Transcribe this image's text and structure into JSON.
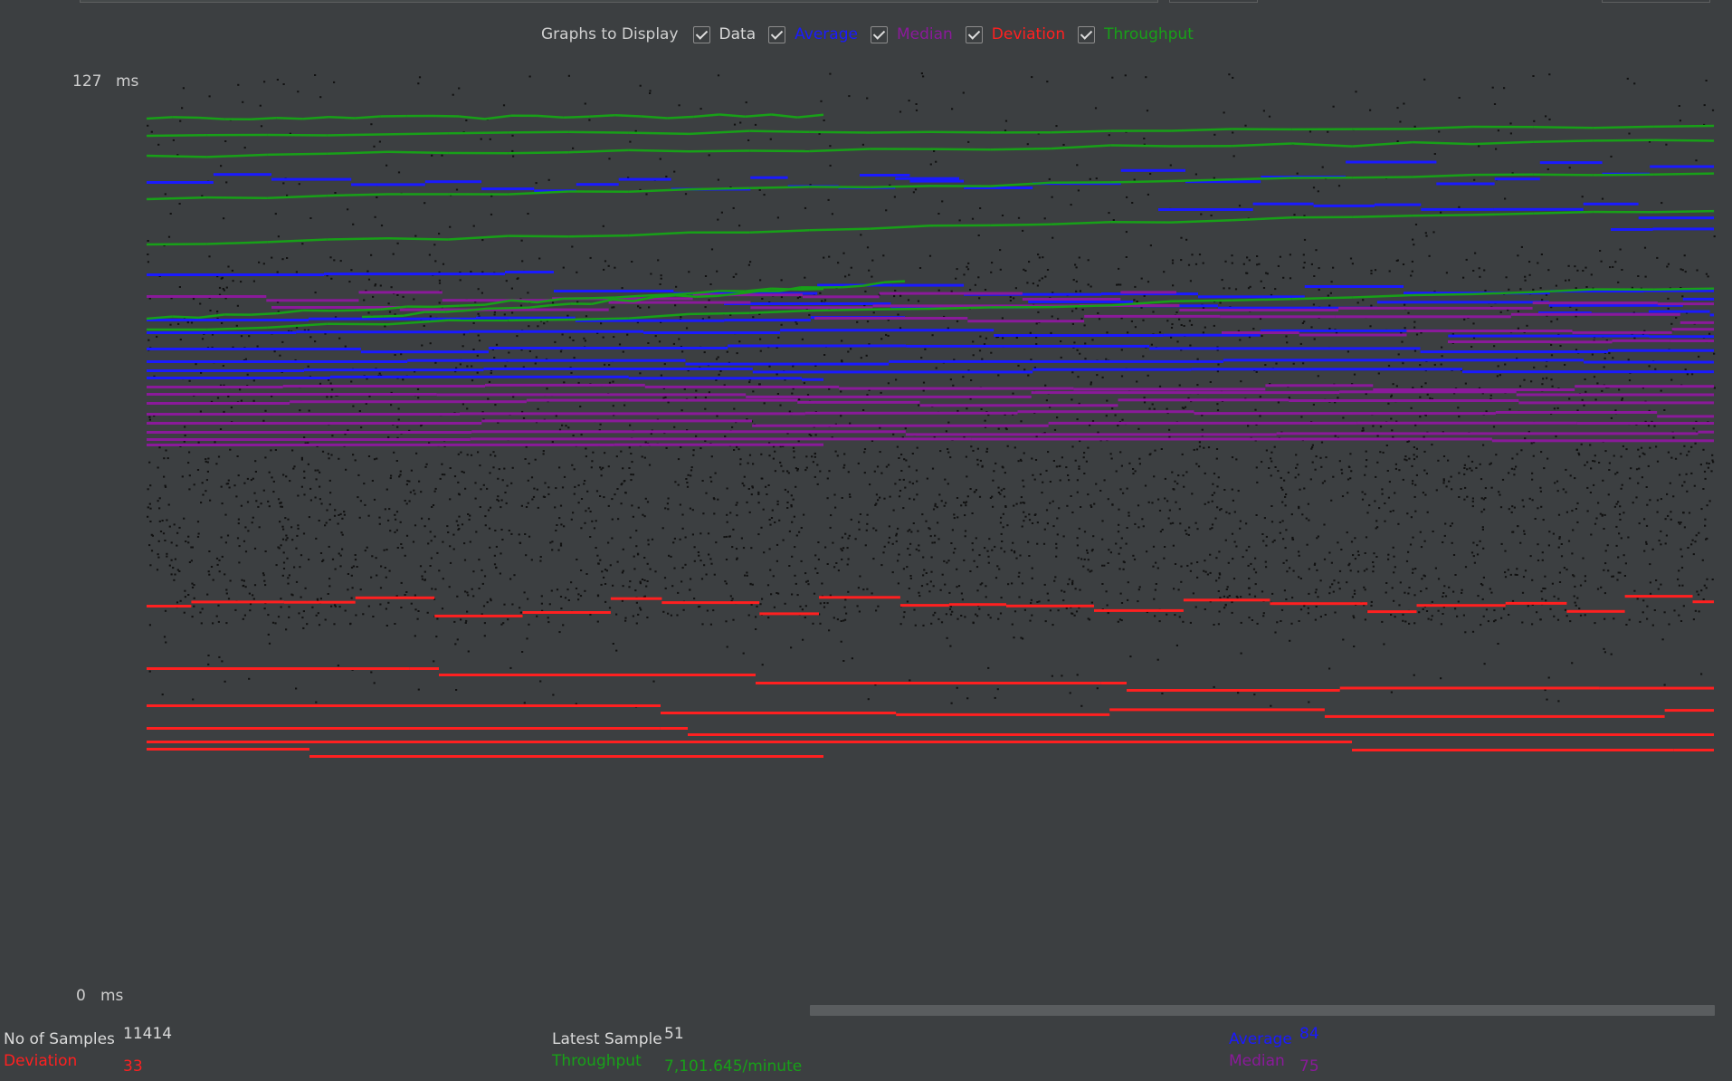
{
  "options": {
    "title": "Graphs to Display",
    "items": [
      {
        "id": "data",
        "label": "Data",
        "checked": true
      },
      {
        "id": "average",
        "label": "Average",
        "checked": true
      },
      {
        "id": "median",
        "label": "Median",
        "checked": true
      },
      {
        "id": "deviation",
        "label": "Deviation",
        "checked": true
      },
      {
        "id": "throughput",
        "label": "Throughput",
        "checked": true
      }
    ]
  },
  "axis": {
    "max_value": "127",
    "min_value": "0",
    "unit": "ms"
  },
  "colors": {
    "background": "#3c3f41",
    "data": "#111111",
    "average": "#1a1aff",
    "median": "#8a1a9a",
    "deviation": "#ff2020",
    "throughput": "#18a018"
  },
  "chart_data": {
    "type": "line",
    "ylim": [
      0,
      127
    ],
    "y_unit": "ms",
    "series": [
      {
        "name": "Data",
        "color": "#111111"
      },
      {
        "name": "Average",
        "color": "#1a1aff"
      },
      {
        "name": "Median",
        "color": "#8a1a9a"
      },
      {
        "name": "Deviation",
        "color": "#ff2020"
      },
      {
        "name": "Throughput",
        "color": "#18a018"
      }
    ]
  },
  "stats": {
    "samples_label": "No of Samples",
    "samples_value": "11414",
    "latest_label": "Latest Sample",
    "latest_value": "51",
    "average_label": "Average",
    "average_value": "84",
    "deviation_label": "Deviation",
    "deviation_value": "33",
    "throughput_label": "Throughput",
    "throughput_value": "7,101.645/minute",
    "median_label": "Median",
    "median_value": "75"
  }
}
